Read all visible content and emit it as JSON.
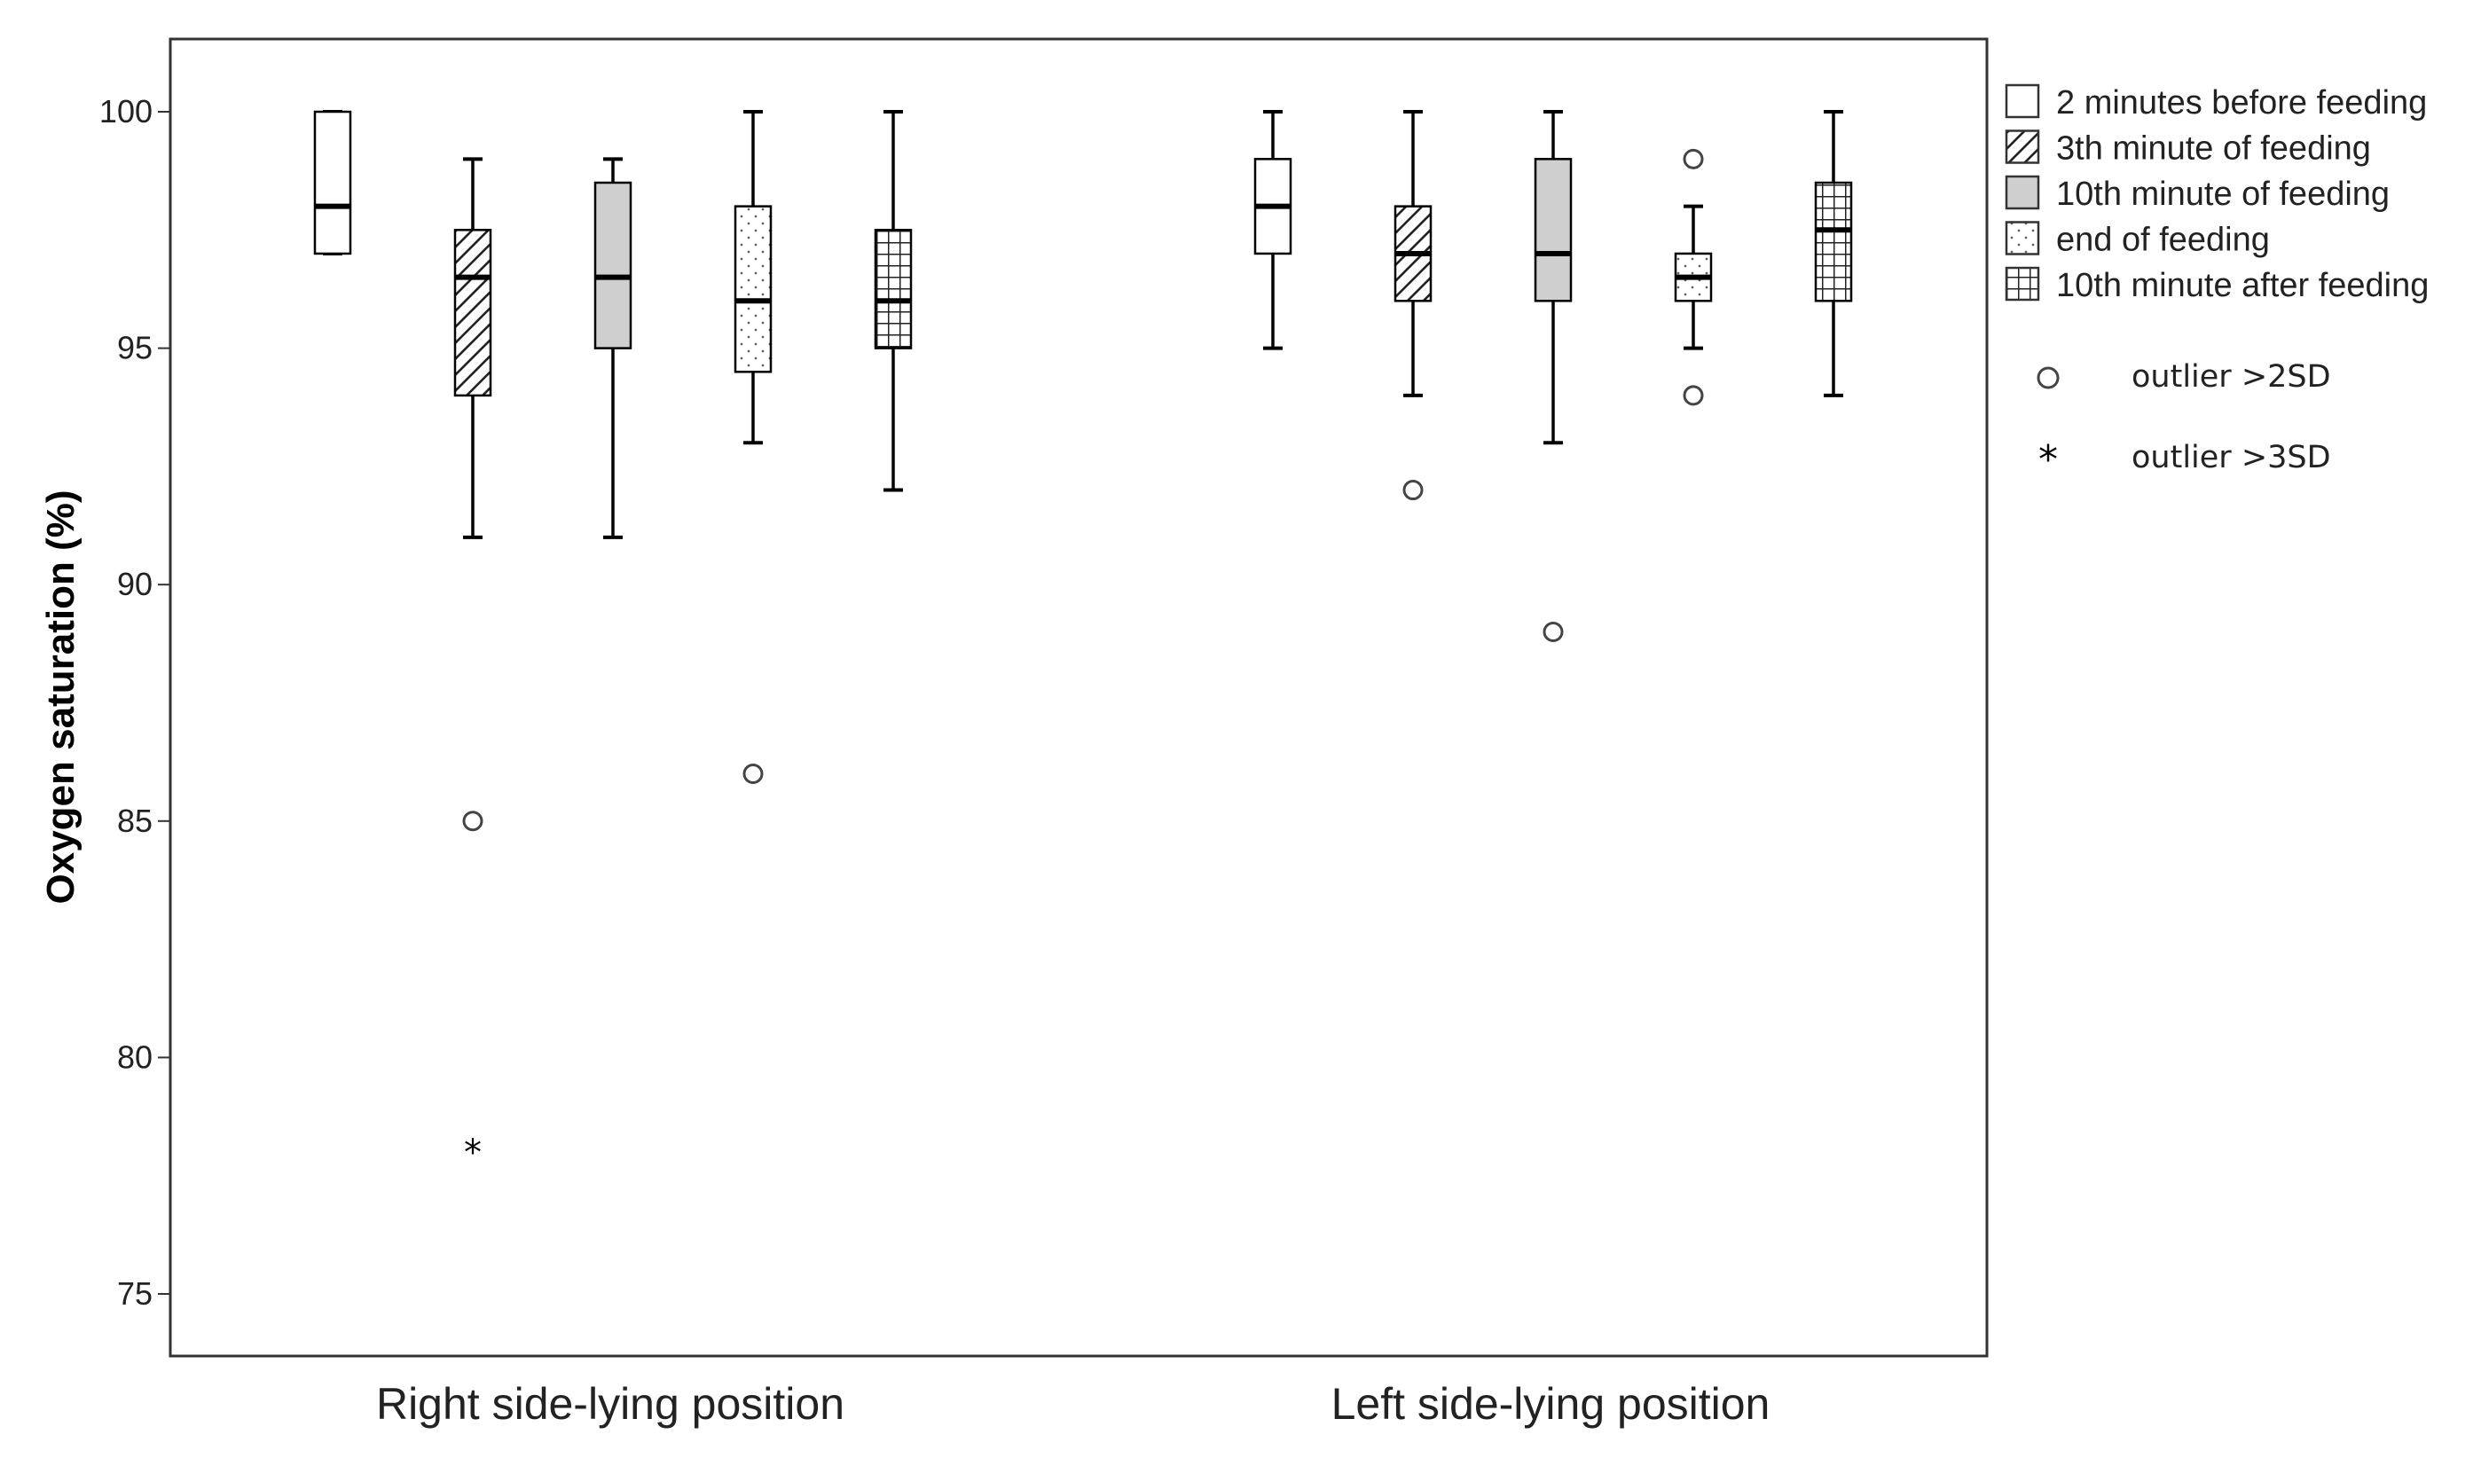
{
  "chart_data": {
    "type": "boxplot",
    "title": "",
    "xlabel": "",
    "ylabel": "Oxygen saturation (%)",
    "ylim": [
      73.5,
      101.5
    ],
    "yticks": [
      75,
      80,
      85,
      90,
      95,
      100
    ],
    "categories": [
      "Right side-lying position",
      "Left side-lying position"
    ],
    "legend_position": "right",
    "series": [
      {
        "name": "2 minutes before feeding",
        "pattern": "none",
        "fill": "#ffffff",
        "boxes": [
          {
            "whisker_low": 97,
            "q1": 97,
            "median": 98,
            "q3": 100,
            "whisker_high": 100,
            "outliers_2sd": [],
            "outliers_3sd": []
          },
          {
            "whisker_low": 95,
            "q1": 97,
            "median": 98,
            "q3": 99,
            "whisker_high": 100,
            "outliers_2sd": [],
            "outliers_3sd": []
          }
        ]
      },
      {
        "name": "3th minute of feeding",
        "pattern": "diagonal-hatch",
        "fill": "#ffffff",
        "boxes": [
          {
            "whisker_low": 91,
            "q1": 94,
            "median": 96.5,
            "q3": 97.5,
            "whisker_high": 99,
            "outliers_2sd": [
              85
            ],
            "outliers_3sd": [
              78
            ]
          },
          {
            "whisker_low": 94,
            "q1": 96,
            "median": 97,
            "q3": 98,
            "whisker_high": 100,
            "outliers_2sd": [
              92
            ],
            "outliers_3sd": []
          }
        ]
      },
      {
        "name": "10th minute of feeding",
        "pattern": "solid-gray",
        "fill": "#cfcfcf",
        "boxes": [
          {
            "whisker_low": 91,
            "q1": 95,
            "median": 96.5,
            "q3": 98.5,
            "whisker_high": 99,
            "outliers_2sd": [],
            "outliers_3sd": []
          },
          {
            "whisker_low": 93,
            "q1": 96,
            "median": 97,
            "q3": 99,
            "whisker_high": 100,
            "outliers_2sd": [
              89
            ],
            "outliers_3sd": []
          }
        ]
      },
      {
        "name": "end of feeding",
        "pattern": "dots",
        "fill": "#ffffff",
        "boxes": [
          {
            "whisker_low": 93,
            "q1": 94.5,
            "median": 96,
            "q3": 98,
            "whisker_high": 100,
            "outliers_2sd": [
              86
            ],
            "outliers_3sd": []
          },
          {
            "whisker_low": 95,
            "q1": 96,
            "median": 96.5,
            "q3": 97,
            "whisker_high": 98,
            "outliers_2sd": [
              99,
              94
            ],
            "outliers_3sd": []
          }
        ]
      },
      {
        "name": "10th minute after feeding",
        "pattern": "grid",
        "fill": "#ffffff",
        "boxes": [
          {
            "whisker_low": 92,
            "q1": 95,
            "median": 96,
            "q3": 97.5,
            "whisker_high": 100,
            "outliers_2sd": [],
            "outliers_3sd": []
          },
          {
            "whisker_low": 94,
            "q1": 96,
            "median": 97.5,
            "q3": 98.5,
            "whisker_high": 100,
            "outliers_2sd": [],
            "outliers_3sd": []
          }
        ]
      }
    ],
    "marker_legend": [
      {
        "symbol": "circle",
        "label": "outlier >2SD"
      },
      {
        "symbol": "asterisk",
        "label": "outlier >3SD"
      }
    ]
  }
}
